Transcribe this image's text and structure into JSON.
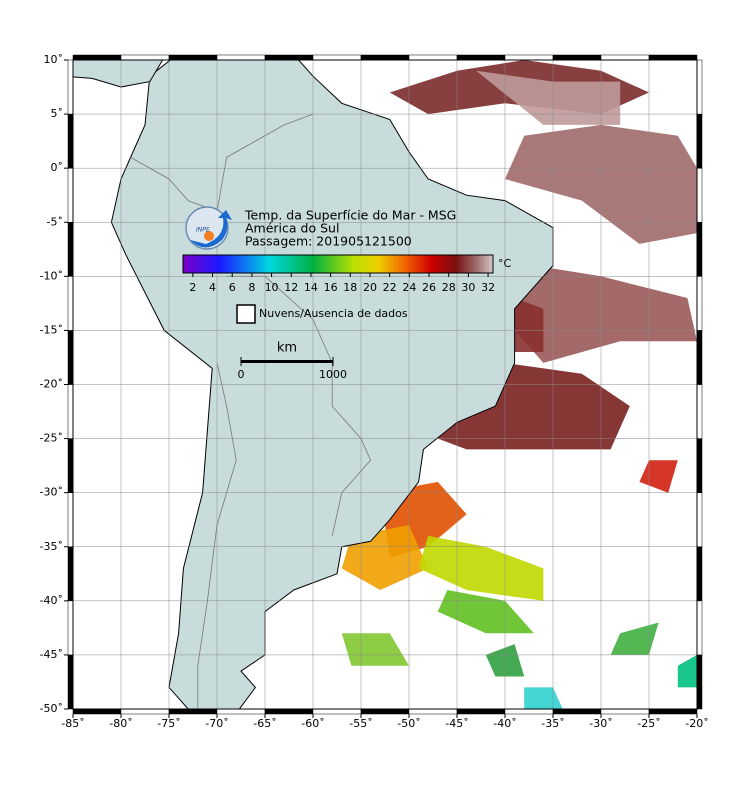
{
  "map": {
    "title_lines": [
      "Temp. da Superfície do Mar - MSG",
      "América do Sul",
      "Passagem: 201905121500"
    ],
    "logo_text": "INPE",
    "colorbar": {
      "unit": "°C",
      "lim": [
        1,
        32.5
      ],
      "ticks": [
        2,
        4,
        6,
        8,
        10,
        12,
        14,
        16,
        18,
        20,
        22,
        24,
        26,
        28,
        30,
        32
      ]
    },
    "legend": "Nuvens/Ausencia de dados",
    "scale": {
      "unit": "km",
      "ticks": [
        0,
        1000
      ]
    },
    "xlim": [
      -85,
      -20
    ],
    "ylim": [
      -50,
      10
    ],
    "xticks": [
      {
        "value": -85,
        "label": "-85˚"
      },
      {
        "value": -80,
        "label": "-80˚"
      },
      {
        "value": -75,
        "label": "-75˚"
      },
      {
        "value": -70,
        "label": "-70˚"
      },
      {
        "value": -65,
        "label": "-65˚"
      },
      {
        "value": -60,
        "label": "-60˚"
      },
      {
        "value": -55,
        "label": "-55˚"
      },
      {
        "value": -50,
        "label": "-50˚"
      },
      {
        "value": -45,
        "label": "-45˚"
      },
      {
        "value": -40,
        "label": "-40˚"
      },
      {
        "value": -35,
        "label": "-35˚"
      },
      {
        "value": -30,
        "label": "-30˚"
      },
      {
        "value": -25,
        "label": "-25˚"
      },
      {
        "value": -20,
        "label": "-20˚"
      }
    ],
    "yticks": [
      {
        "value": 10,
        "label": "10˚"
      },
      {
        "value": 5,
        "label": "5˚"
      },
      {
        "value": 0,
        "label": "0˚"
      },
      {
        "value": -5,
        "label": "-5˚"
      },
      {
        "value": -10,
        "label": "-10˚"
      },
      {
        "value": -15,
        "label": "-15˚"
      },
      {
        "value": -20,
        "label": "-20˚"
      },
      {
        "value": -25,
        "label": "-25˚"
      },
      {
        "value": -30,
        "label": "-30˚"
      },
      {
        "value": -35,
        "label": "-35˚"
      },
      {
        "value": -40,
        "label": "-40˚"
      },
      {
        "value": -45,
        "label": "-45˚"
      },
      {
        "value": -50,
        "label": "-50˚"
      }
    ]
  }
}
